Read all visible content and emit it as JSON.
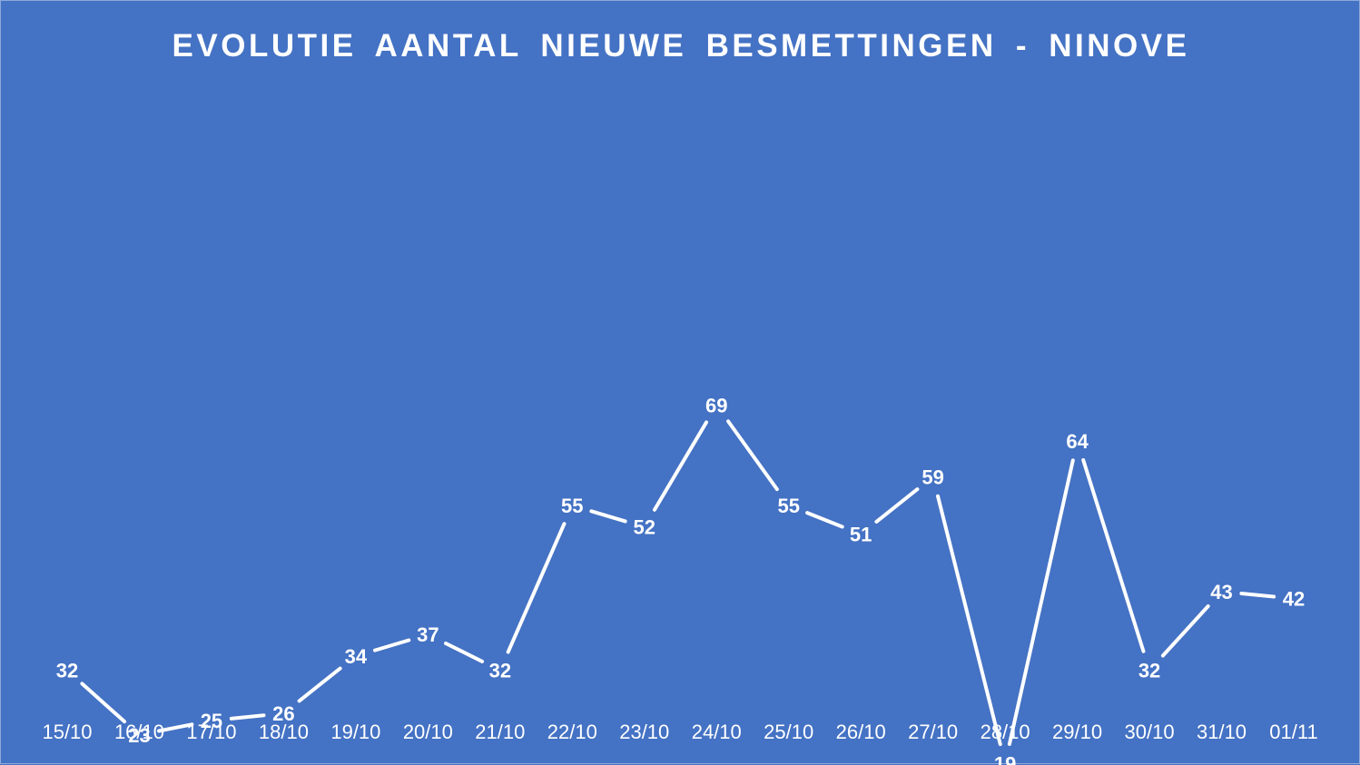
{
  "chart_data": {
    "type": "line",
    "title": "EVOLUTIE  AANTAL NIEUWE BESMETTINGEN  - NINOVE",
    "xlabel": "",
    "ylabel": "",
    "ylim": [
      0,
      75
    ],
    "grid": false,
    "drop_lines": true,
    "data_labels": true,
    "categories": [
      "15/10",
      "16/10",
      "17/10",
      "18/10",
      "19/10",
      "20/10",
      "21/10",
      "22/10",
      "23/10",
      "24/10",
      "25/10",
      "26/10",
      "27/10",
      "28/10",
      "29/10",
      "30/10",
      "31/10",
      "01/11"
    ],
    "series": [
      {
        "values": [
          32,
          23,
          25,
          26,
          34,
          37,
          32,
          55,
          52,
          69,
          55,
          51,
          59,
          19,
          64,
          32,
          43,
          42
        ]
      }
    ],
    "colors": {
      "background": "#4472c4",
      "line": "#ffffff",
      "text": "#ffffff"
    }
  }
}
